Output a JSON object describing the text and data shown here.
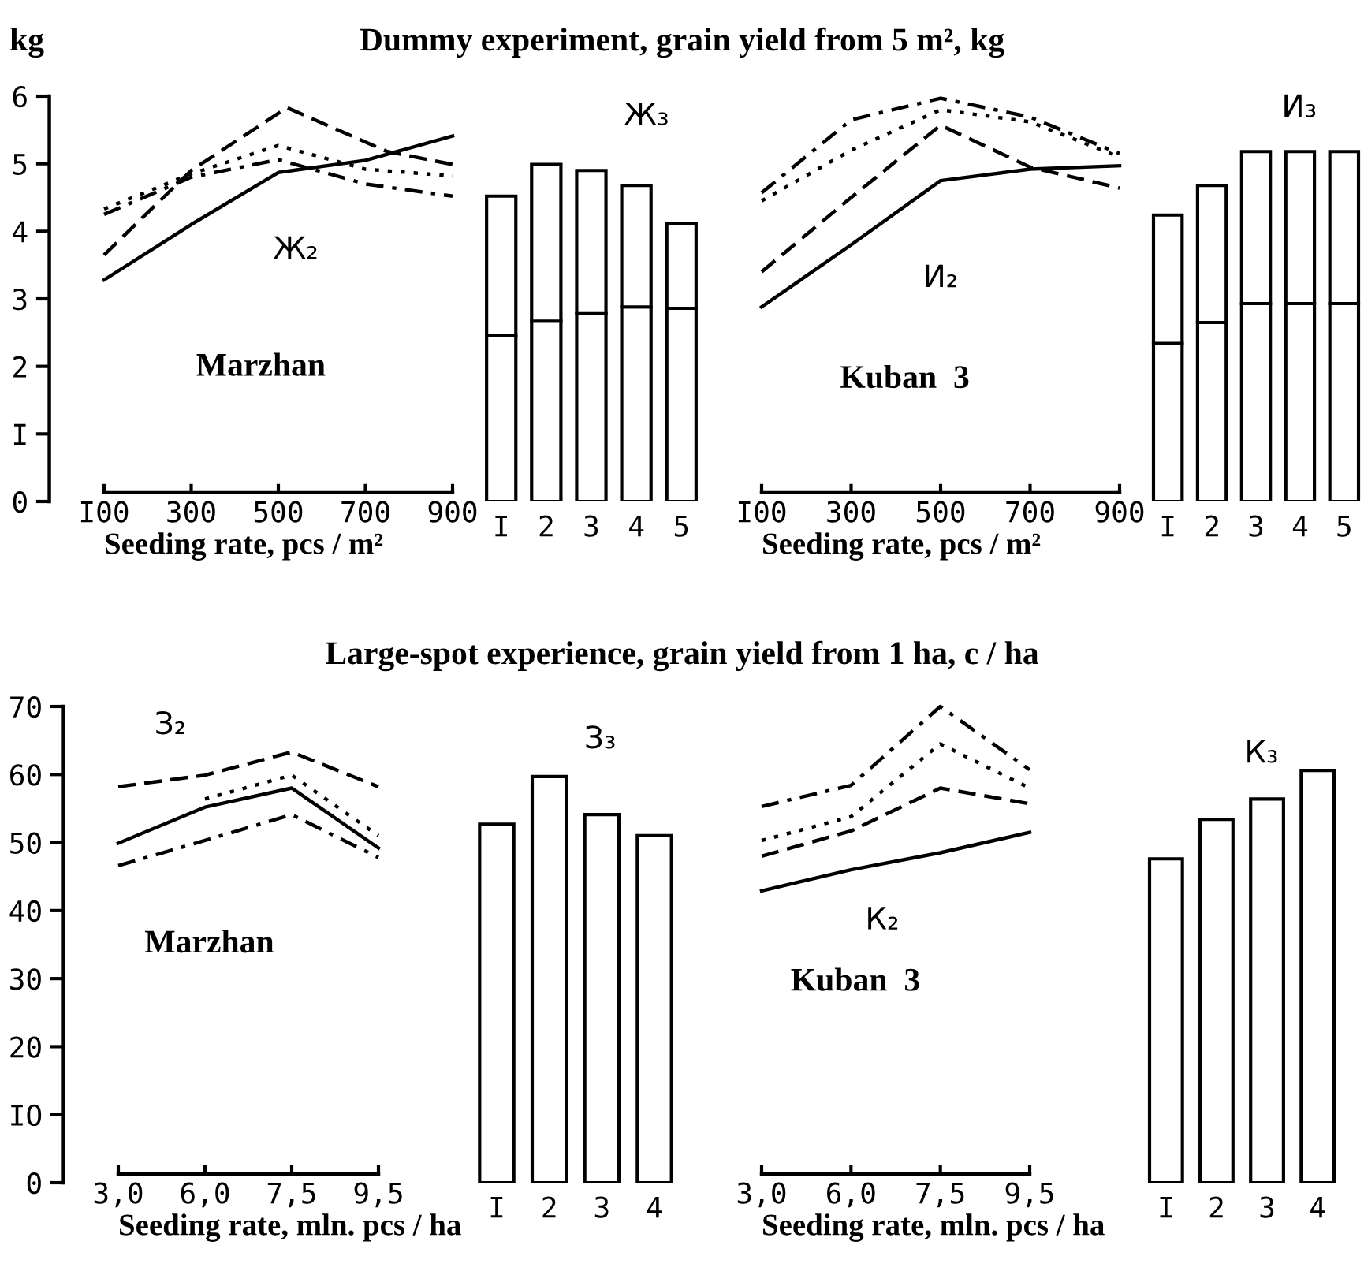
{
  "chart_data": [
    {
      "type": "line",
      "title": "Dummy experiment, grain yield from 5 m², kg",
      "ylabel": "kg",
      "xlabel": "Seeding rate, pcs / m²",
      "annotations": [
        "Marzhan",
        "Ж₂"
      ],
      "x": [
        100,
        300,
        500,
        520,
        700,
        750,
        900
      ],
      "xlim": [
        100,
        900
      ],
      "xticks": [
        {
          "value": 100,
          "label": "I00"
        },
        300,
        500,
        700,
        900
      ],
      "ylim": [
        0,
        6
      ],
      "yticks": [
        0,
        {
          "value": 1,
          "label": "I"
        },
        2,
        3,
        4,
        5,
        6
      ],
      "legend": false,
      "grid": false,
      "series": [
        {
          "color": "#000000",
          "line_style": "solid",
          "values": [
            3.28,
            4.1,
            4.87,
            null,
            5.05,
            null,
            5.41
          ]
        },
        {
          "color": "#000000",
          "line_style": "dashed",
          "values": [
            3.65,
            4.9,
            null,
            5.83,
            null,
            5.18,
            4.99
          ]
        },
        {
          "color": "#000000",
          "line_style": "dotted",
          "values": [
            4.33,
            4.85,
            5.27,
            null,
            4.92,
            null,
            4.82
          ]
        },
        {
          "color": "#000000",
          "line_style": "dashdot",
          "values": [
            4.25,
            4.8,
            5.06,
            null,
            4.7,
            null,
            4.52
          ]
        }
      ]
    },
    {
      "type": "bar",
      "stacked": true,
      "categories": [
        "I",
        "2",
        "3",
        "4",
        "5"
      ],
      "annotations": [
        "Ж₃"
      ],
      "ylim": [
        0,
        6
      ],
      "tick_labels": "x",
      "legend": false,
      "grid": false,
      "series": [
        {
          "color": "#ffffff",
          "values": [
            2.46,
            2.67,
            2.78,
            2.88,
            2.86
          ]
        },
        {
          "color": "#ffffff",
          "values": [
            2.06,
            2.32,
            2.12,
            1.8,
            1.26
          ]
        }
      ]
    },
    {
      "type": "line",
      "xlabel": "Seeding rate, pcs / m²",
      "annotations": [
        "Kuban  3",
        "И₂"
      ],
      "x": [
        100,
        300,
        500,
        700,
        900
      ],
      "xlim": [
        100,
        900
      ],
      "xticks": [
        {
          "value": 100,
          "label": "I00"
        },
        300,
        500,
        700,
        900
      ],
      "ylim": [
        0,
        6
      ],
      "tick_labels": "x",
      "legend": false,
      "grid": false,
      "series": [
        {
          "color": "#000000",
          "line_style": "solid",
          "values": [
            2.88,
            3.8,
            4.75,
            4.92,
            4.97
          ]
        },
        {
          "color": "#000000",
          "line_style": "dashed",
          "values": [
            3.4,
            4.5,
            5.57,
            4.95,
            4.64
          ]
        },
        {
          "color": "#000000",
          "line_style": "dotted",
          "values": [
            4.45,
            5.2,
            5.8,
            5.62,
            5.1
          ]
        },
        {
          "color": "#000000",
          "line_style": "dashdot",
          "values": [
            4.57,
            5.65,
            5.97,
            5.69,
            5.15
          ]
        }
      ]
    },
    {
      "type": "bar",
      "stacked": true,
      "categories": [
        "I",
        "2",
        "3",
        "4",
        "5"
      ],
      "annotations": [
        "И₃"
      ],
      "ylim": [
        0,
        6
      ],
      "tick_labels": "x",
      "legend": false,
      "grid": false,
      "series": [
        {
          "color": "#ffffff",
          "values": [
            2.34,
            2.65,
            2.93,
            2.93,
            2.93
          ]
        },
        {
          "color": "#ffffff",
          "values": [
            1.9,
            2.03,
            2.25,
            2.25,
            2.25
          ]
        }
      ]
    },
    {
      "type": "line",
      "title": "Large-spot experience, grain yield from 1 ha, c / ha",
      "xlabel": "Seeding rate, mln. pcs / ha",
      "annotations": [
        "Marzhan",
        "З₂"
      ],
      "categories": [
        "3,0",
        "6,0",
        "7,5",
        "9,5"
      ],
      "ylim": [
        0,
        70
      ],
      "yticks": [
        0,
        {
          "value": 10,
          "label": "IO"
        },
        20,
        30,
        40,
        50,
        60,
        70
      ],
      "legend": false,
      "grid": false,
      "series": [
        {
          "color": "#000000",
          "line_style": "dashed",
          "values": [
            58.2,
            59.9,
            63.3,
            58.2
          ]
        },
        {
          "color": "#000000",
          "line_style": "dotted",
          "values": [
            null,
            56.4,
            59.9,
            51.0
          ]
        },
        {
          "color": "#000000",
          "line_style": "solid",
          "values": [
            49.9,
            55.2,
            58.0,
            49.2
          ]
        },
        {
          "color": "#000000",
          "line_style": "dashdot",
          "values": [
            46.6,
            50.3,
            54.1,
            47.8
          ]
        }
      ]
    },
    {
      "type": "bar",
      "categories": [
        "I",
        "2",
        "3",
        "4"
      ],
      "annotations": [
        "З₃"
      ],
      "ylim": [
        0,
        70
      ],
      "tick_labels": "x",
      "legend": false,
      "grid": false,
      "series": [
        {
          "color": "#ffffff",
          "values": [
            52.7,
            59.7,
            54.1,
            51.0
          ]
        }
      ]
    },
    {
      "type": "line",
      "xlabel": "Seeding rate, mln. pcs / ha",
      "annotations": [
        "Kuban  3",
        "К₂"
      ],
      "categories": [
        "3,0",
        "6,0",
        "7,5",
        "9,5"
      ],
      "ylim": [
        0,
        70
      ],
      "tick_labels": "x",
      "legend": false,
      "grid": false,
      "series": [
        {
          "color": "#000000",
          "line_style": "dashdot",
          "values": [
            55.3,
            58.4,
            70.0,
            60.7
          ]
        },
        {
          "color": "#000000",
          "line_style": "dotted",
          "values": [
            50.3,
            53.8,
            64.5,
            58.0
          ]
        },
        {
          "color": "#000000",
          "line_style": "dashed",
          "values": [
            48.0,
            51.7,
            58.0,
            55.7
          ]
        },
        {
          "color": "#000000",
          "line_style": "solid",
          "values": [
            42.9,
            46.0,
            48.5,
            51.5
          ]
        }
      ]
    },
    {
      "type": "bar",
      "categories": [
        "I",
        "2",
        "3",
        "4"
      ],
      "annotations": [
        "К₃"
      ],
      "ylim": [
        0,
        70
      ],
      "tick_labels": "x",
      "legend": false,
      "grid": false,
      "series": [
        {
          "color": "#ffffff",
          "values": [
            47.6,
            53.4,
            56.4,
            60.6
          ]
        }
      ]
    }
  ]
}
